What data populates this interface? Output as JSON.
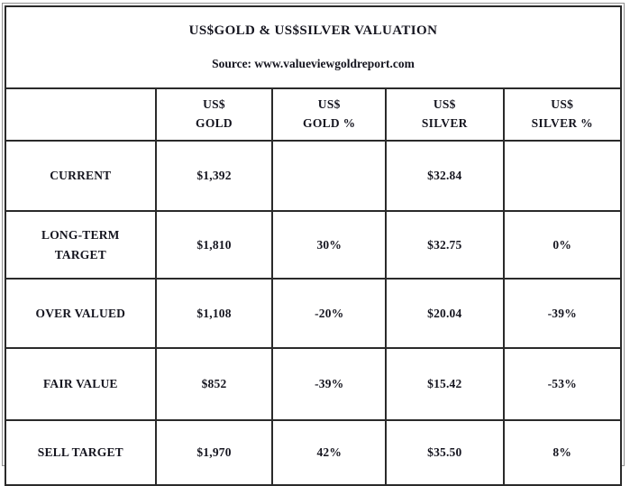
{
  "colors": {
    "text": "#15151f",
    "sell_target_text": "#fb1b1b",
    "grid_border": "#2a2a2a",
    "outer_frame": "#8f8f8f",
    "background": "#ffffff"
  },
  "header": {
    "title": "US$GOLD & US$SILVER VALUATION",
    "source": "Source: www.valueviewgoldreport.com"
  },
  "columns": {
    "label": "",
    "gold": "US$\nGOLD",
    "gold_pct": "US$\nGOLD %",
    "silver": "US$\nSILVER",
    "silver_pct": "US$\nSILVER %"
  },
  "rows": {
    "current": {
      "label": "CURRENT",
      "gold": "$1,392",
      "gold_pct": "",
      "silver": "$32.84",
      "silver_pct": ""
    },
    "longterm": {
      "label": "LONG-TERM\nTARGET",
      "gold": "$1,810",
      "gold_pct": "30%",
      "silver": "$32.75",
      "silver_pct": "0%"
    },
    "overvalued": {
      "label": "OVER VALUED",
      "gold": "$1,108",
      "gold_pct": "-20%",
      "silver": "$20.04",
      "silver_pct": "-39%"
    },
    "fairvalue": {
      "label": "FAIR VALUE",
      "gold": "$852",
      "gold_pct": "-39%",
      "silver": "$15.42",
      "silver_pct": "-53%"
    },
    "selltarget": {
      "label": "SELL TARGET",
      "gold": "$1,970",
      "gold_pct": "42%",
      "silver": "$35.50",
      "silver_pct": "8%"
    }
  },
  "chart_data": {
    "type": "table",
    "title": "US$GOLD & US$SILVER VALUATION",
    "source": "Source: www.valueviewgoldreport.com",
    "columns": [
      "",
      "US$ GOLD",
      "US$ GOLD %",
      "US$ SILVER",
      "US$ SILVER %"
    ],
    "rows": [
      [
        "CURRENT",
        "$1,392",
        "",
        "$32.84",
        ""
      ],
      [
        "LONG-TERM TARGET",
        "$1,810",
        "30%",
        "$32.75",
        "0%"
      ],
      [
        "OVER VALUED",
        "$1,108",
        "-20%",
        "$20.04",
        "-39%"
      ],
      [
        "FAIR VALUE",
        "$852",
        "-39%",
        "$15.42",
        "-53%"
      ],
      [
        "SELL TARGET",
        "$1,970",
        "42%",
        "$35.50",
        "8%"
      ]
    ]
  }
}
